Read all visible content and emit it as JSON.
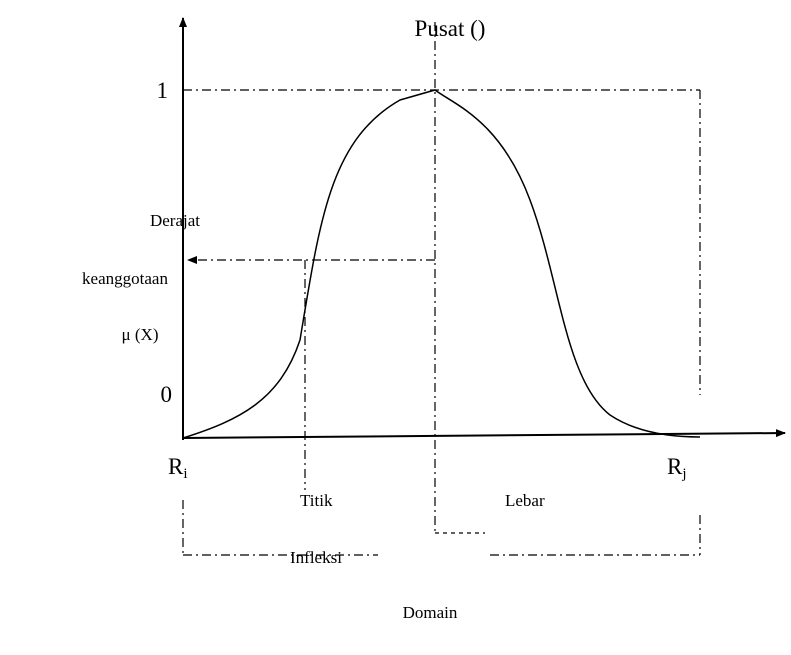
{
  "labels": {
    "center": "Pusat ()",
    "one": "1",
    "zero": "0",
    "ylabel": [
      "Derajat",
      "keanggotaan",
      "μ (X)"
    ],
    "left": {
      "base": "R",
      "sub": "i"
    },
    "right": {
      "base": "R",
      "sub": "j"
    },
    "inflection": [
      "Titik",
      "Infleksi"
    ],
    "width": "Lebar",
    "domain": "Domain"
  }
}
